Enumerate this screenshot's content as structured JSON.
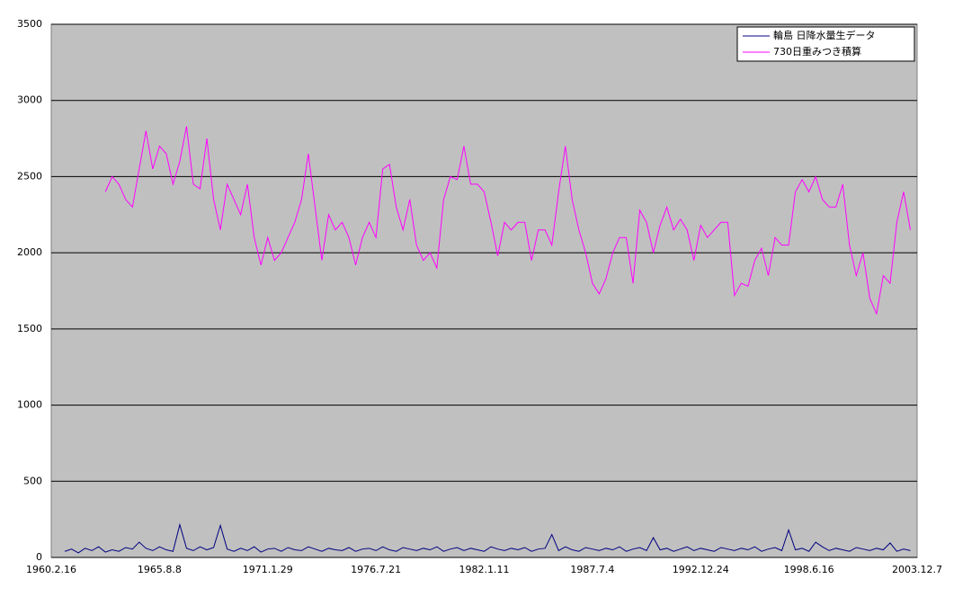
{
  "chart_data": {
    "type": "line",
    "categories": [
      "1960.2.16",
      null,
      null,
      null,
      null,
      null,
      null,
      null,
      null,
      null,
      null,
      null,
      null,
      null,
      null,
      null,
      "1965.8.8",
      null,
      null,
      null,
      null,
      null,
      null,
      null,
      null,
      null,
      null,
      null,
      null,
      null,
      null,
      null,
      "1971.1.29",
      null,
      null,
      null,
      null,
      null,
      null,
      null,
      null,
      null,
      null,
      null,
      null,
      null,
      null,
      null,
      "1976.7.21",
      null,
      null,
      null,
      null,
      null,
      null,
      null,
      null,
      null,
      null,
      null,
      null,
      null,
      null,
      null,
      "1982.1.11",
      null,
      null,
      null,
      null,
      null,
      null,
      null,
      null,
      null,
      null,
      null,
      null,
      null,
      null,
      null,
      "1987.7.4",
      null,
      null,
      null,
      null,
      null,
      null,
      null,
      null,
      null,
      null,
      null,
      null,
      null,
      null,
      null,
      "1992.12.24",
      null,
      null,
      null,
      null,
      null,
      null,
      null,
      null,
      null,
      null,
      null,
      null,
      null,
      null,
      null,
      "1998.6.16",
      null,
      null,
      null,
      null,
      null,
      null,
      null,
      null,
      null,
      null,
      null,
      null,
      null,
      null,
      null,
      "2003.12.7"
    ],
    "series": [
      {
        "name": "輪島 日降水量生データ",
        "color": "#000080",
        "values": [
          null,
          null,
          40,
          55,
          30,
          60,
          45,
          70,
          35,
          50,
          40,
          65,
          55,
          100,
          60,
          45,
          70,
          50,
          40,
          215,
          60,
          45,
          70,
          50,
          65,
          210,
          55,
          40,
          60,
          45,
          70,
          35,
          55,
          60,
          40,
          65,
          50,
          45,
          70,
          55,
          40,
          60,
          50,
          45,
          65,
          40,
          55,
          60,
          45,
          70,
          50,
          40,
          65,
          55,
          45,
          60,
          50,
          70,
          40,
          55,
          65,
          45,
          60,
          50,
          40,
          70,
          55,
          45,
          60,
          50,
          65,
          40,
          55,
          60,
          150,
          45,
          70,
          50,
          40,
          65,
          55,
          45,
          60,
          50,
          70,
          40,
          55,
          65,
          45,
          130,
          50,
          60,
          40,
          55,
          70,
          45,
          60,
          50,
          40,
          65,
          55,
          45,
          60,
          50,
          70,
          40,
          55,
          65,
          45,
          180,
          50,
          60,
          40,
          100,
          70,
          45,
          60,
          50,
          40,
          65,
          55,
          45,
          60,
          50,
          95,
          40,
          55,
          45,
          null
        ]
      },
      {
        "name": "730日重みつき積算",
        "color": "#ff00ff",
        "values": [
          null,
          null,
          null,
          null,
          null,
          null,
          null,
          null,
          2400,
          2500,
          2450,
          2350,
          2300,
          2550,
          2800,
          2550,
          2700,
          2650,
          2450,
          2600,
          2830,
          2450,
          2420,
          2750,
          2350,
          2150,
          2450,
          2350,
          2250,
          2450,
          2100,
          1920,
          2100,
          1950,
          2000,
          2100,
          2200,
          2350,
          2650,
          2300,
          1950,
          2250,
          2150,
          2200,
          2100,
          1920,
          2100,
          2200,
          2100,
          2550,
          2580,
          2300,
          2150,
          2350,
          2050,
          1950,
          2000,
          1900,
          2350,
          2500,
          2480,
          2700,
          2450,
          2450,
          2400,
          2200,
          1980,
          2200,
          2150,
          2200,
          2200,
          1950,
          2150,
          2150,
          2050,
          2400,
          2700,
          2350,
          2150,
          2000,
          1800,
          1730,
          1830,
          2000,
          2100,
          2100,
          1800,
          2280,
          2200,
          2000,
          2180,
          2300,
          2150,
          2220,
          2150,
          1950,
          2180,
          2100,
          2150,
          2200,
          2200,
          1720,
          1800,
          1780,
          1950,
          2030,
          1850,
          2100,
          2050,
          2050,
          2400,
          2480,
          2400,
          2500,
          2350,
          2300,
          2300,
          2450,
          2050,
          1850,
          2000,
          1700,
          1600,
          1850,
          1800,
          2200,
          2400,
          2150,
          null
        ]
      }
    ],
    "ylim": [
      0,
      3500
    ],
    "yticks": [
      0,
      500,
      1000,
      1500,
      2000,
      2500,
      3000,
      3500
    ],
    "grid": true,
    "legend": "top-right"
  }
}
